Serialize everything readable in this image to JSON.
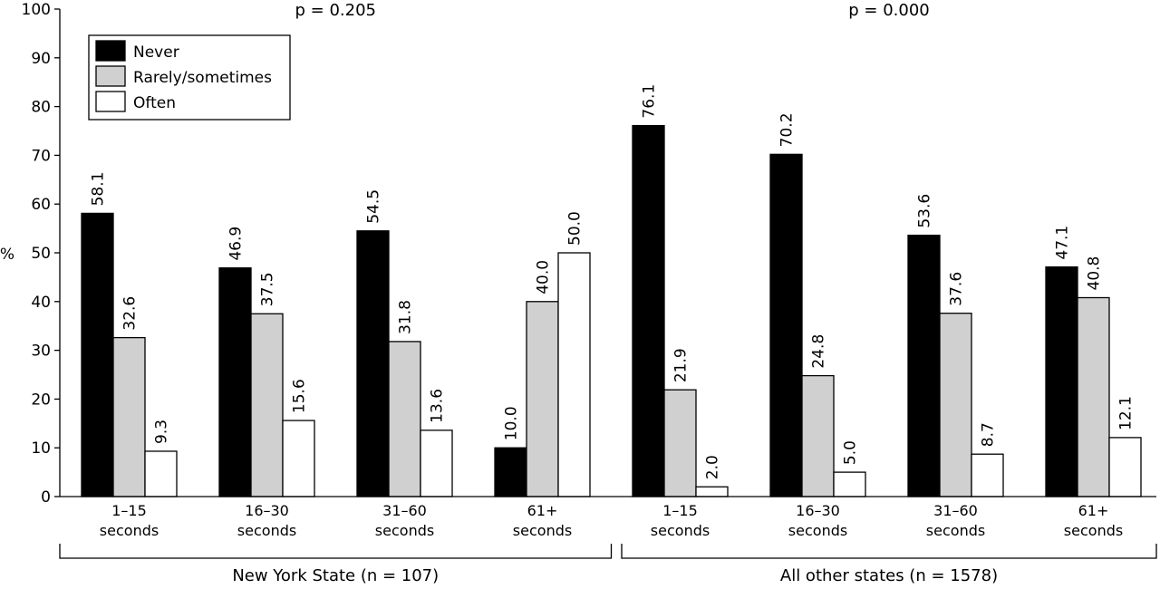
{
  "chart_data": {
    "type": "bar",
    "ylabel": "%",
    "ylim": [
      0,
      100
    ],
    "yticks": [
      0,
      10,
      20,
      30,
      40,
      50,
      60,
      70,
      80,
      90,
      100
    ],
    "legend_position": "top-left",
    "grid": false,
    "series": [
      {
        "name": "Never",
        "color": "#000000"
      },
      {
        "name": "Rarely/sometimes",
        "color": "#d0d0d0"
      },
      {
        "name": "Often",
        "color": "#ffffff"
      }
    ],
    "groups": [
      {
        "label": "New York State (n = 107)",
        "p_value": "p = 0.205",
        "categories": [
          {
            "line1": "1–15",
            "line2": "seconds",
            "values": [
              58.1,
              32.6,
              9.3
            ],
            "labels": [
              "58.1",
              "32.6",
              "9.3"
            ]
          },
          {
            "line1": "16–30",
            "line2": "seconds",
            "values": [
              46.9,
              37.5,
              15.6
            ],
            "labels": [
              "46.9",
              "37.5",
              "15.6"
            ]
          },
          {
            "line1": "31–60",
            "line2": "seconds",
            "values": [
              54.5,
              31.8,
              13.6
            ],
            "labels": [
              "54.5",
              "31.8",
              "13.6"
            ]
          },
          {
            "line1": "61+",
            "line2": "seconds",
            "values": [
              10.0,
              40.0,
              50.0
            ],
            "labels": [
              "10.0",
              "40.0",
              "50.0"
            ]
          }
        ]
      },
      {
        "label": "All other states (n = 1578)",
        "p_value": "p = 0.000",
        "categories": [
          {
            "line1": "1–15",
            "line2": "seconds",
            "values": [
              76.1,
              21.9,
              2.0
            ],
            "labels": [
              "76.1",
              "21.9",
              "2.0"
            ]
          },
          {
            "line1": "16–30",
            "line2": "seconds",
            "values": [
              70.2,
              24.8,
              5.0
            ],
            "labels": [
              "70.2",
              "24.8",
              "5.0"
            ]
          },
          {
            "line1": "31–60",
            "line2": "seconds",
            "values": [
              53.6,
              37.6,
              8.7
            ],
            "labels": [
              "53.6",
              "37.6",
              "8.7"
            ]
          },
          {
            "line1": "61+",
            "line2": "seconds",
            "values": [
              47.1,
              40.8,
              12.1
            ],
            "labels": [
              "47.1",
              "40.8",
              "12.1"
            ]
          }
        ]
      }
    ]
  }
}
